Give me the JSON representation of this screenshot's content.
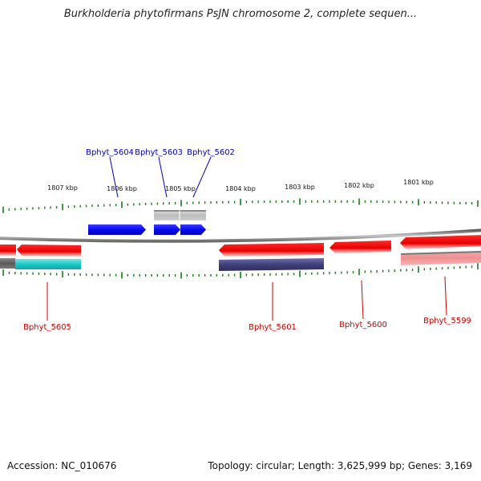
{
  "title": "Burkholderia phytofirmans PsJN chromosome 2, complete sequen...",
  "footer": {
    "accession": "Accession: NC_010676",
    "summary": "Topology: circular; Length: 3,625,999 bp; Genes: 3,169"
  },
  "colors": {
    "forward_label": "#0000bb",
    "reverse_label": "#cc0000",
    "forward_gene": "#0a0af0",
    "reverse_gene": "#ee0a0a",
    "tick": "#1a7a1a",
    "backbone": "#888888"
  },
  "scale_labels": [
    "1807 kbp",
    "1806 kbp",
    "1805 kbp",
    "1804 kbp",
    "1803 kbp",
    "1802 kbp",
    "1801 kbp"
  ],
  "forward_gene_labels": [
    "Bphyt_5604",
    "Bphyt_5603",
    "Bphyt_5602"
  ],
  "reverse_gene_labels": [
    "Bphyt_5605",
    "Bphyt_5601",
    "Bphyt_5600",
    "Bphyt_5599"
  ]
}
